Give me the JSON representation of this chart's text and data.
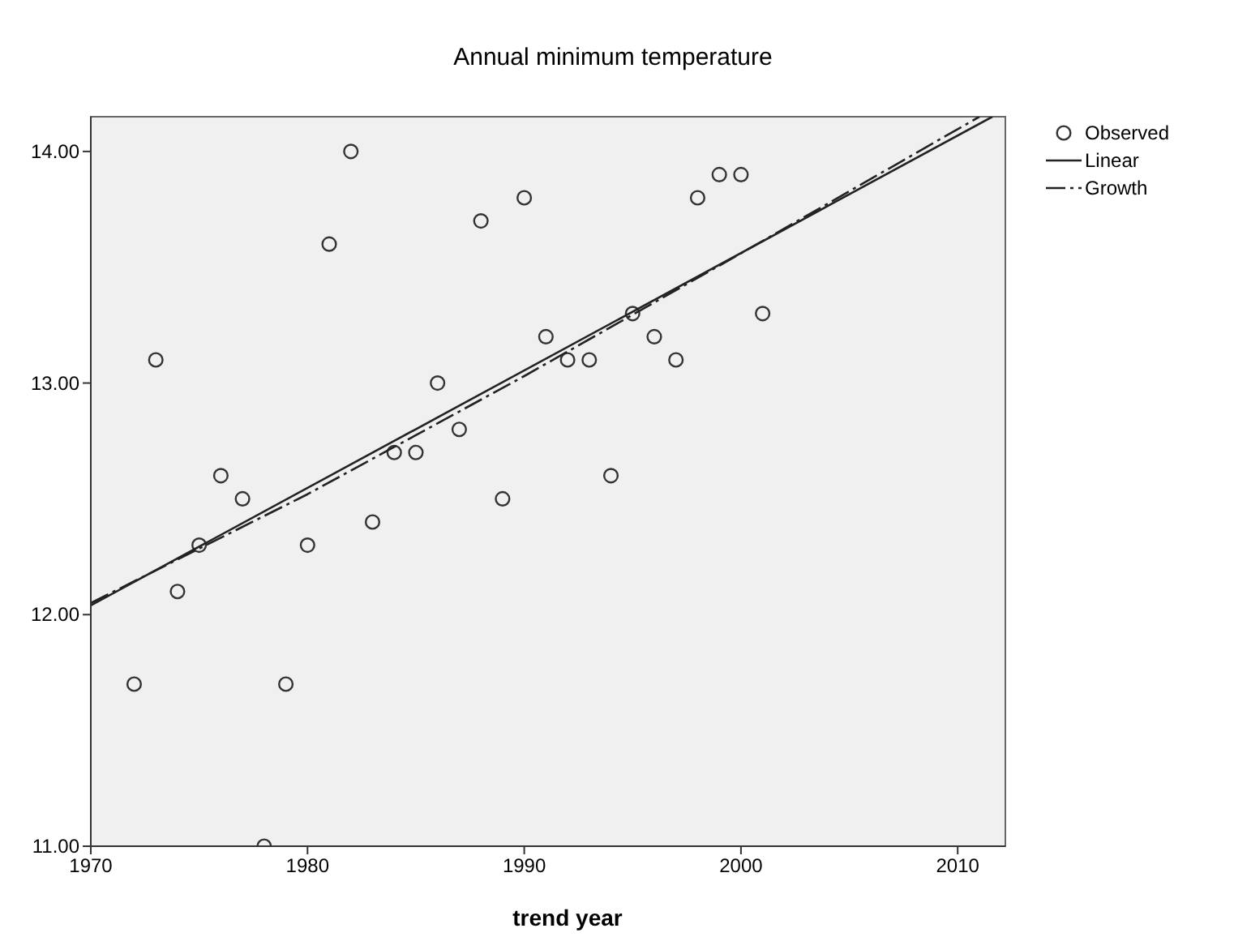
{
  "chart_data": {
    "type": "scatter",
    "title": "Annual minimum temperature",
    "xlabel": "trend year",
    "xlim": [
      1970,
      2012.2
    ],
    "xticks": [
      1970,
      1980,
      1990,
      2000,
      2010
    ],
    "ylim": [
      11,
      14.15
    ],
    "yticks": [
      {
        "value": 11,
        "label": "11.00"
      },
      {
        "value": 12,
        "label": "12.00"
      },
      {
        "value": 13,
        "label": "13.00"
      },
      {
        "value": 14,
        "label": "14.00"
      }
    ],
    "grid": false,
    "legend": "top right",
    "series": [
      {
        "name": "Observed",
        "marker": "circle",
        "color": "#333333",
        "x": [
          1972,
          1973,
          1974,
          1975,
          1976,
          1977,
          1978,
          1979,
          1980,
          1981,
          1982,
          1983,
          1984,
          1985,
          1986,
          1987,
          1988,
          1989,
          1990,
          1991,
          1992,
          1993,
          1994,
          1995,
          1996,
          1997,
          1998,
          1999,
          2000,
          2001
        ],
        "values": [
          11.7,
          13.1,
          12.1,
          12.3,
          12.6,
          12.5,
          11.0,
          11.7,
          12.3,
          13.6,
          14.0,
          12.4,
          12.7,
          12.7,
          13.0,
          12.8,
          13.7,
          12.5,
          13.8,
          13.2,
          13.1,
          13.1,
          12.6,
          13.3,
          13.2,
          13.1,
          13.8,
          13.9,
          13.9,
          13.3
        ]
      },
      {
        "name": "Linear",
        "type": "line",
        "marker": "none",
        "line_style": "solid",
        "color": "#222222",
        "x": [
          1970,
          2011.6
        ],
        "values": [
          12.04,
          14.15
        ]
      },
      {
        "name": "Growth",
        "type": "line",
        "marker": "none",
        "line_style": "dashed",
        "color": "#222222",
        "x": [
          1970,
          1980,
          1990,
          2000,
          2011
        ],
        "values": [
          12.05,
          12.52,
          13.03,
          13.56,
          14.15
        ]
      }
    ]
  }
}
